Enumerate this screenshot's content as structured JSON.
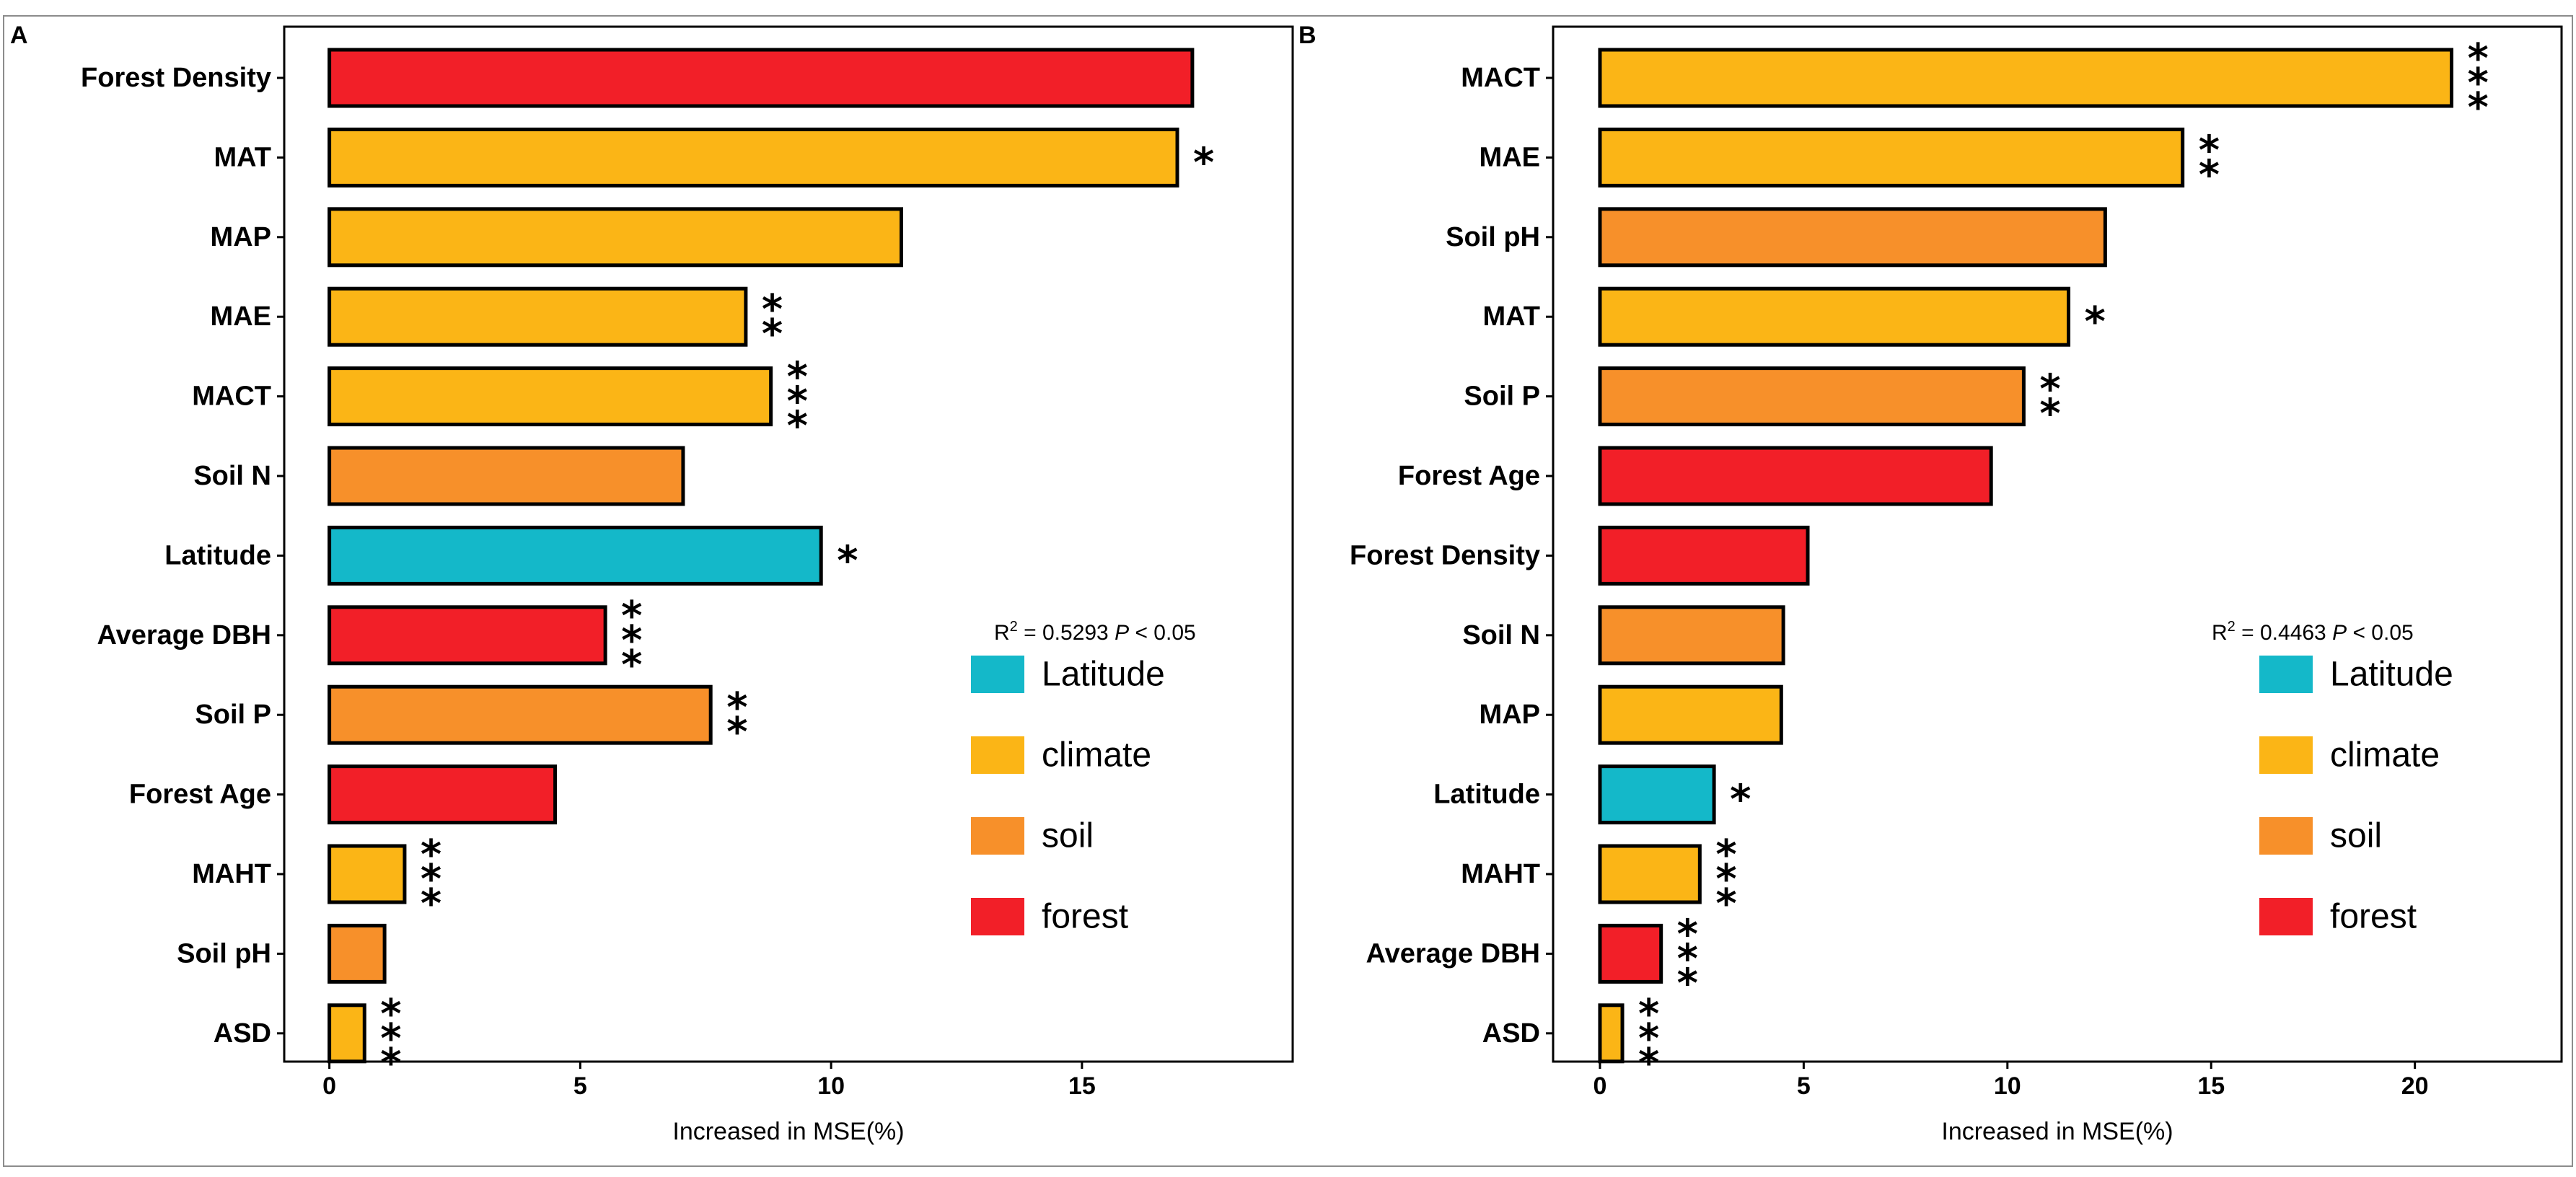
{
  "figure_frame": true,
  "colors": {
    "Latitude": "#14b8c9",
    "climate": "#fbb516",
    "soil": "#f7902a",
    "forest": "#f21f28"
  },
  "legend_entries": [
    {
      "key": "Latitude",
      "label": "Latitude"
    },
    {
      "key": "climate",
      "label": "climate"
    },
    {
      "key": "soil",
      "label": "soil"
    },
    {
      "key": "forest",
      "label": "forest"
    }
  ],
  "chart_data": [
    {
      "type": "bar",
      "orientation": "horizontal",
      "panel_label": "A",
      "xlabel": "Increased in MSE(%)",
      "xlim": [
        -0.9,
        19.2
      ],
      "xticks": [
        0,
        5,
        10,
        15
      ],
      "stat_r2": "0.5293",
      "stat_p": "P",
      "stat_p_value": "< 0.05",
      "legend_position": "right-middle",
      "bars": [
        {
          "label": "Forest Density",
          "value": 17.2,
          "group": "forest",
          "sig": ""
        },
        {
          "label": "MAT",
          "value": 16.9,
          "group": "climate",
          "sig": "*"
        },
        {
          "label": "MAP",
          "value": 11.4,
          "group": "climate",
          "sig": ""
        },
        {
          "label": "MAE",
          "value": 8.3,
          "group": "climate",
          "sig": "**"
        },
        {
          "label": "MACT",
          "value": 8.8,
          "group": "climate",
          "sig": "***"
        },
        {
          "label": "Soil N",
          "value": 7.05,
          "group": "soil",
          "sig": ""
        },
        {
          "label": "Latitude",
          "value": 9.8,
          "group": "Latitude",
          "sig": "*"
        },
        {
          "label": "Average DBH",
          "value": 5.5,
          "group": "forest",
          "sig": "***"
        },
        {
          "label": "Soil P",
          "value": 7.6,
          "group": "soil",
          "sig": "**"
        },
        {
          "label": "Forest Age",
          "value": 4.5,
          "group": "forest",
          "sig": ""
        },
        {
          "label": "MAHT",
          "value": 1.5,
          "group": "climate",
          "sig": "***"
        },
        {
          "label": "Soil pH",
          "value": 1.1,
          "group": "soil",
          "sig": ""
        },
        {
          "label": "ASD",
          "value": 0.7,
          "group": "climate",
          "sig": "***"
        }
      ]
    },
    {
      "type": "bar",
      "orientation": "horizontal",
      "panel_label": "B",
      "xlabel": "Increased in MSE(%)",
      "xlim": [
        -1.15,
        23.6
      ],
      "xticks": [
        0,
        5,
        10,
        15,
        20
      ],
      "stat_r2": "0.4463",
      "stat_p": "P",
      "stat_p_value": "< 0.05",
      "legend_position": "right-middle",
      "bars": [
        {
          "label": "MACT",
          "value": 20.9,
          "group": "climate",
          "sig": "***"
        },
        {
          "label": "MAE",
          "value": 14.3,
          "group": "climate",
          "sig": "**"
        },
        {
          "label": "Soil pH",
          "value": 12.4,
          "group": "soil",
          "sig": ""
        },
        {
          "label": "MAT",
          "value": 11.5,
          "group": "climate",
          "sig": "*"
        },
        {
          "label": "Soil P",
          "value": 10.4,
          "group": "soil",
          "sig": "**"
        },
        {
          "label": "Forest Age",
          "value": 9.6,
          "group": "forest",
          "sig": ""
        },
        {
          "label": "Forest Density",
          "value": 5.1,
          "group": "forest",
          "sig": ""
        },
        {
          "label": "Soil N",
          "value": 4.5,
          "group": "soil",
          "sig": ""
        },
        {
          "label": "MAP",
          "value": 4.45,
          "group": "climate",
          "sig": ""
        },
        {
          "label": "Latitude",
          "value": 2.8,
          "group": "Latitude",
          "sig": "*"
        },
        {
          "label": "MAHT",
          "value": 2.45,
          "group": "climate",
          "sig": "***"
        },
        {
          "label": "Average DBH",
          "value": 1.5,
          "group": "forest",
          "sig": "***"
        },
        {
          "label": "ASD",
          "value": 0.55,
          "group": "climate",
          "sig": "***"
        }
      ]
    }
  ]
}
